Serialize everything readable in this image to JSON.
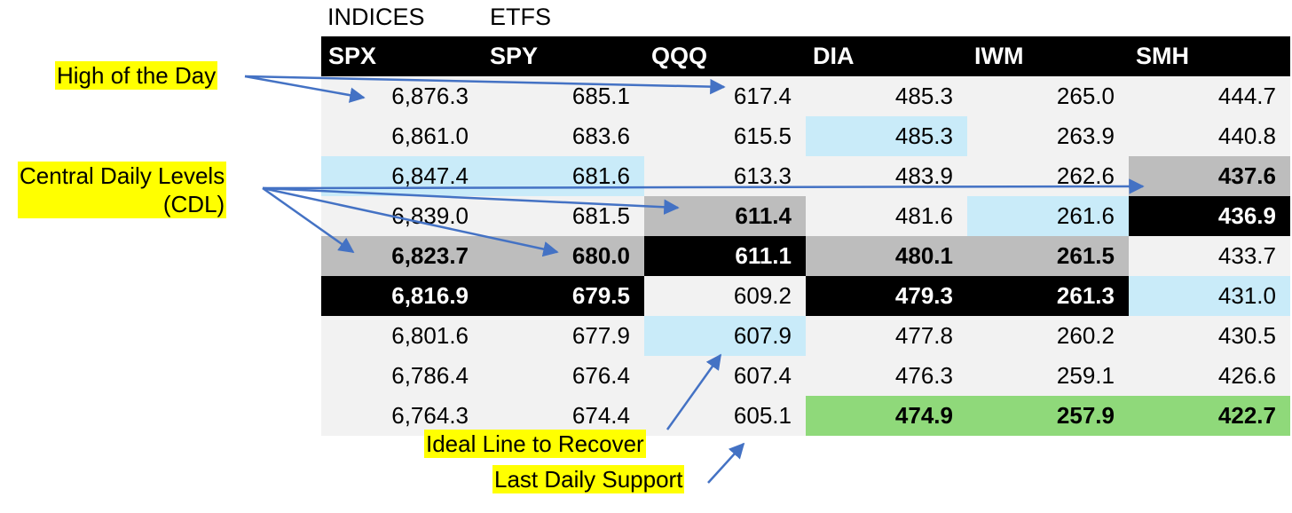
{
  "headers": {
    "indices_label": "INDICES",
    "etfs_label": "ETFS"
  },
  "table": {
    "columns": [
      "SPX",
      "SPY",
      "QQQ",
      "DIA",
      "IWM",
      "SMH"
    ],
    "rows": [
      [
        "6,876.3",
        "685.1",
        "617.4",
        "485.3",
        "265.0",
        "444.7"
      ],
      [
        "6,861.0",
        "683.6",
        "615.5",
        "485.3",
        "263.9",
        "440.8"
      ],
      [
        "6,847.4",
        "681.6",
        "613.3",
        "483.9",
        "262.6",
        "437.6"
      ],
      [
        "6,839.0",
        "681.5",
        "611.4",
        "481.6",
        "261.6",
        "436.9"
      ],
      [
        "6,823.7",
        "680.0",
        "611.1",
        "480.1",
        "261.5",
        "433.7"
      ],
      [
        "6,816.9",
        "679.5",
        "609.2",
        "479.3",
        "261.3",
        "431.0"
      ],
      [
        "6,801.6",
        "677.9",
        "607.9",
        "477.8",
        "260.2",
        "430.5"
      ],
      [
        "6,786.4",
        "676.4",
        "607.4",
        "476.3",
        "259.1",
        "426.6"
      ],
      [
        "6,764.3",
        "674.4",
        "605.1",
        "474.9",
        "257.9",
        "422.7"
      ]
    ],
    "highlights": [
      [
        null,
        null,
        null,
        null,
        null,
        null
      ],
      [
        null,
        null,
        null,
        "blue",
        null,
        null
      ],
      [
        "blue",
        "blue",
        null,
        null,
        null,
        "gray"
      ],
      [
        null,
        null,
        "gray",
        null,
        "blue",
        "black"
      ],
      [
        "gray",
        "gray",
        "black",
        "gray",
        "gray",
        null
      ],
      [
        "black",
        "black",
        null,
        "black",
        "black",
        "blue"
      ],
      [
        null,
        null,
        "blue",
        null,
        null,
        null
      ],
      [
        null,
        null,
        null,
        null,
        null,
        null
      ],
      [
        null,
        null,
        null,
        "green",
        "green",
        "green"
      ]
    ],
    "highlight_colors": {
      "blue": "#c9ebf9",
      "gray": "#bdbdbd",
      "black": "#000000",
      "green": "#8fd97a",
      "default": "#f2f2f2"
    }
  },
  "callouts": {
    "high_of_day": "High of the Day",
    "cdl_line1": "Central Daily Levels",
    "cdl_line2": "(CDL)",
    "ideal_line": "Ideal Line to Recover",
    "last_support": "Last Daily Support",
    "callout_color": "#ffff00",
    "arrow_color": "#4472c4"
  }
}
